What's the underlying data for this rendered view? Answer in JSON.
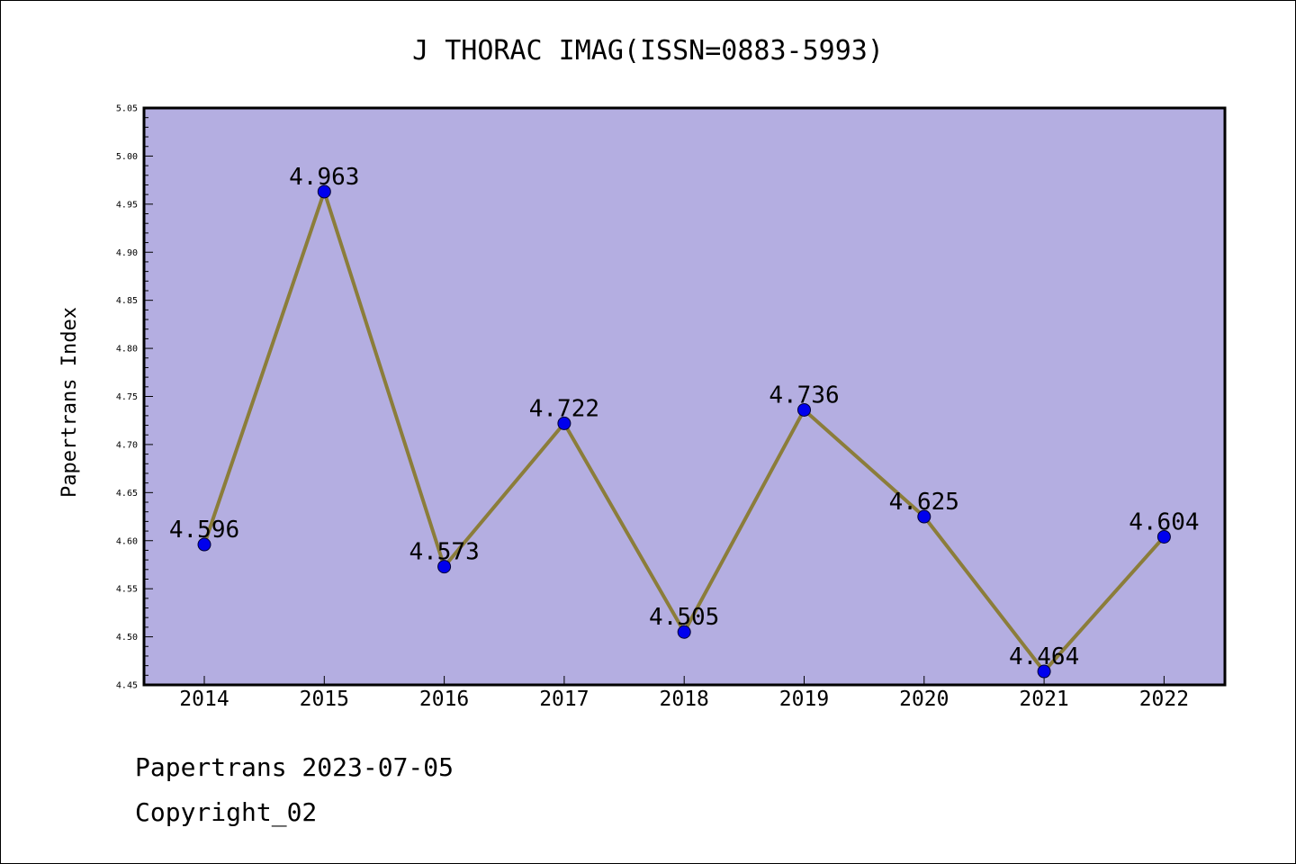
{
  "chart_data": {
    "type": "line",
    "title": "J THORAC IMAG(ISSN=0883-5993)",
    "xlabel": "",
    "ylabel": "Papertrans Index",
    "categories": [
      "2014",
      "2015",
      "2016",
      "2017",
      "2018",
      "2019",
      "2020",
      "2021",
      "2022"
    ],
    "series": [
      {
        "values": [
          4.596,
          4.963,
          4.573,
          4.722,
          4.505,
          4.736,
          4.625,
          4.464,
          4.604
        ],
        "data_labels": [
          "4.596",
          "4.963",
          "4.573",
          "4.722",
          "4.505",
          "4.736",
          "4.625",
          "4.464",
          "4.604"
        ]
      }
    ],
    "ylim": [
      4.45,
      5.05
    ],
    "yticks": [
      "4.45",
      "4.50",
      "4.55",
      "4.60",
      "4.65",
      "4.70",
      "4.75",
      "4.80",
      "4.85",
      "4.90",
      "4.95",
      "5.00",
      "5.05"
    ],
    "grid": false,
    "legend": "none",
    "colors": {
      "plot_background": "#b4aee1",
      "line": "#8b7d3a",
      "marker": "#0000ee",
      "marker_edge": "#000033"
    }
  },
  "footer": {
    "date_text": "Papertrans 2023-07-05",
    "copyright_text": "Copyright_02"
  }
}
